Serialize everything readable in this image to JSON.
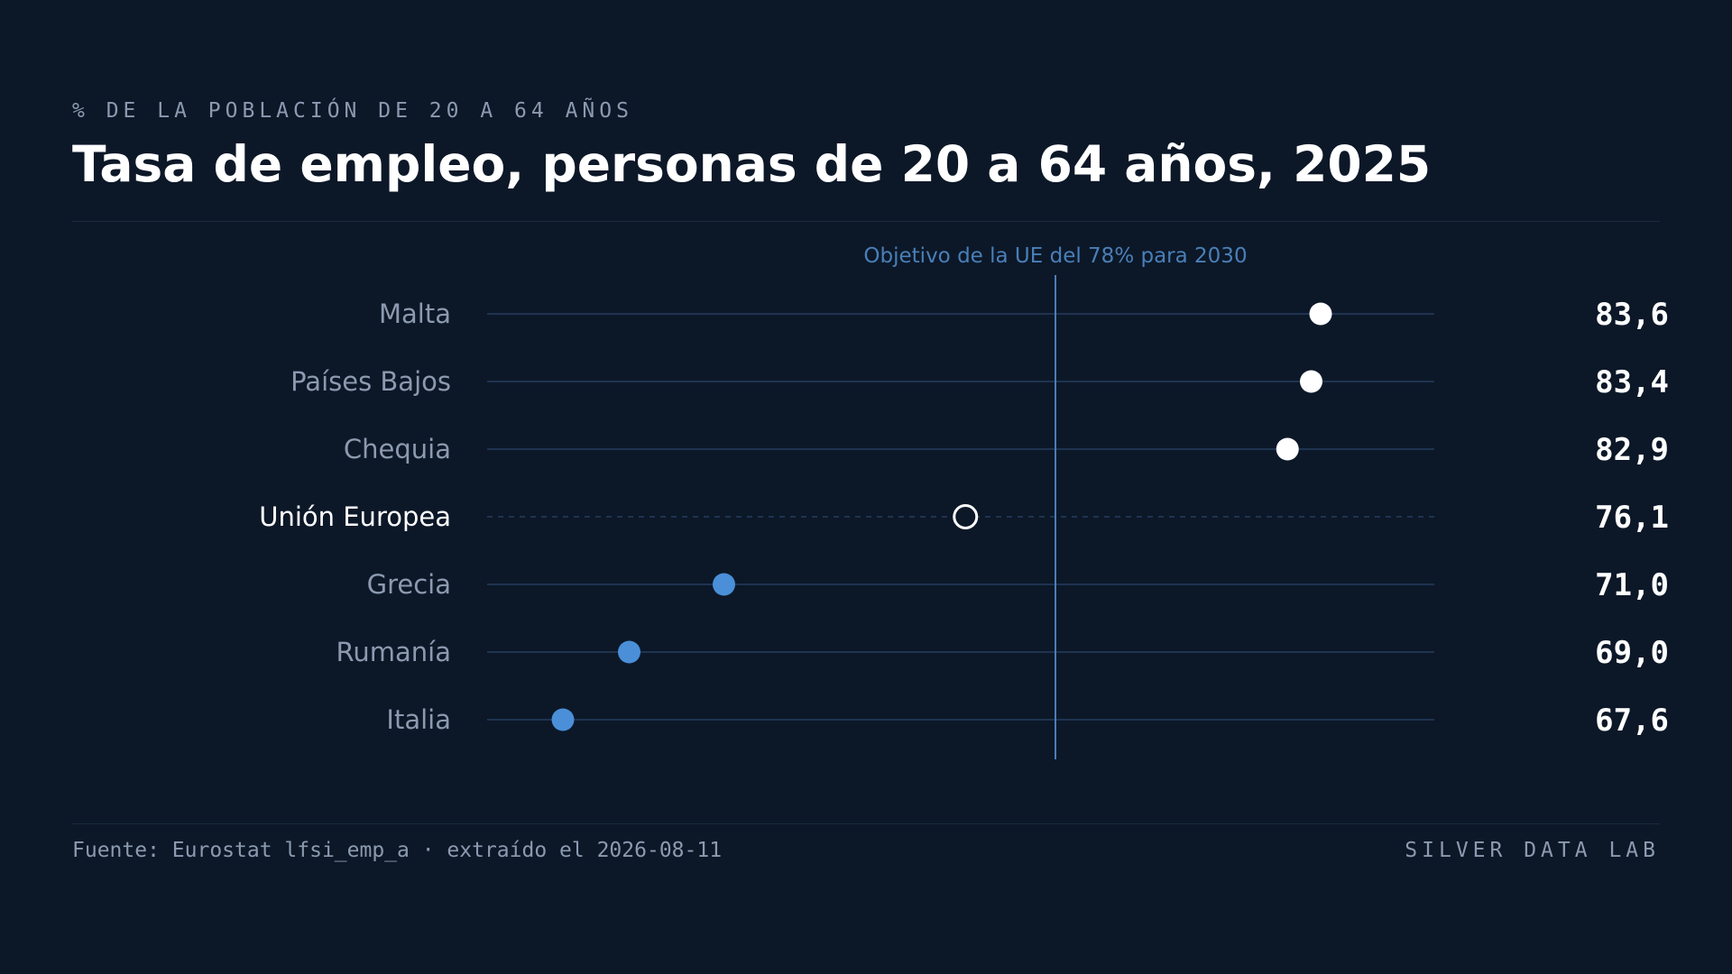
{
  "header": {
    "kicker": "% DE LA POBLACIÓN DE 20 A 64 AÑOS",
    "title": "Tasa de empleo, personas de 20 a 64 años, 2025"
  },
  "footer": {
    "source": "Fuente: Eurostat lfsi_emp_a · extraído el 2026-08-11",
    "brand": "SILVER DATA LAB"
  },
  "colors": {
    "background": "#0c1828",
    "above_target": "#ffffff",
    "below_target": "#4a8fd8",
    "reference": "#4a7fb8",
    "label_muted": "#8c9ab0",
    "gridline": "#1f3350"
  },
  "chart_data": {
    "type": "dot",
    "xlim": [
      66,
      86
    ],
    "reference_line": {
      "value": 78,
      "label": "Objetivo de la UE del 78% para 2030"
    },
    "rows": [
      {
        "label": "Malta",
        "value": 83.6,
        "value_label": "83,6",
        "group": "above"
      },
      {
        "label": "Países Bajos",
        "value": 83.4,
        "value_label": "83,4",
        "group": "above"
      },
      {
        "label": "Chequia",
        "value": 82.9,
        "value_label": "82,9",
        "group": "above"
      },
      {
        "label": "Unión Europea",
        "value": 76.1,
        "value_label": "76,1",
        "group": "aggregate"
      },
      {
        "label": "Grecia",
        "value": 71.0,
        "value_label": "71,0",
        "group": "below"
      },
      {
        "label": "Rumanía",
        "value": 69.0,
        "value_label": "69,0",
        "group": "below"
      },
      {
        "label": "Italia",
        "value": 67.6,
        "value_label": "67,6",
        "group": "below"
      }
    ]
  }
}
